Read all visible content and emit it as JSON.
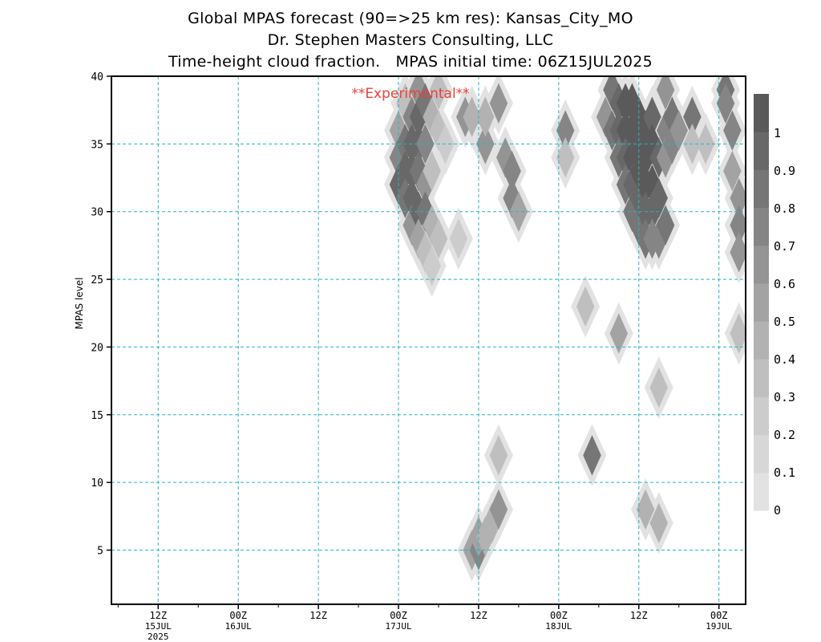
{
  "title_lines": [
    "Global MPAS forecast (90=>25 km res): Kansas_City_MO",
    "Dr. Stephen Masters Consulting, LLC",
    "Time-height cloud fraction.   MPAS initial time: 06Z15JUL2025"
  ],
  "watermark": "**Experimental**",
  "colors": {
    "grid": "#1fb8c8",
    "watermark": "#e8413c",
    "levels": [
      "#e2e2e2",
      "#d7d7d7",
      "#cccccc",
      "#bfbfbf",
      "#b2b2b2",
      "#a3a3a3",
      "#949494",
      "#858585",
      "#767676",
      "#686868",
      "#5a5a5a"
    ]
  },
  "chart_data": {
    "type": "heatmap",
    "variable": "cloud fraction",
    "title": "Time-height cloud fraction.",
    "ylabel": "MPAS level",
    "xlabel": "",
    "ylim": [
      1,
      40
    ],
    "xlim_hours_from_init": [
      -1,
      94
    ],
    "x_ticks": [
      {
        "label": "12Z",
        "sub": "15JUL",
        "sub2": "2025",
        "hours": 6
      },
      {
        "label": "00Z",
        "sub": "16JUL",
        "sub2": "",
        "hours": 18
      },
      {
        "label": "12Z",
        "sub": "",
        "sub2": "",
        "hours": 30
      },
      {
        "label": "00Z",
        "sub": "17JUL",
        "sub2": "",
        "hours": 42
      },
      {
        "label": "12Z",
        "sub": "",
        "sub2": "",
        "hours": 54
      },
      {
        "label": "00Z",
        "sub": "18JUL",
        "sub2": "",
        "hours": 66
      },
      {
        "label": "12Z",
        "sub": "",
        "sub2": "",
        "hours": 78
      },
      {
        "label": "00Z",
        "sub": "19JUL",
        "sub2": "",
        "hours": 90
      }
    ],
    "y_ticks": [
      5,
      10,
      15,
      20,
      25,
      30,
      35,
      40
    ],
    "colorbar_labels": [
      "0",
      "0.1",
      "0.2",
      "0.3",
      "0.4",
      "0.5",
      "0.6",
      "0.7",
      "0.8",
      "0.9",
      "1"
    ],
    "grid": true,
    "cells": [
      {
        "t": 42,
        "l": 36,
        "v": 0.5
      },
      {
        "t": 42,
        "l": 34,
        "v": 0.7
      },
      {
        "t": 42,
        "l": 32,
        "v": 0.9
      },
      {
        "t": 43,
        "l": 38,
        "v": 0.3
      },
      {
        "t": 43,
        "l": 35,
        "v": 0.8
      },
      {
        "t": 43,
        "l": 33,
        "v": 0.9
      },
      {
        "t": 43,
        "l": 31,
        "v": 0.8
      },
      {
        "t": 44,
        "l": 37,
        "v": 0.7
      },
      {
        "t": 44,
        "l": 35,
        "v": 0.9
      },
      {
        "t": 44,
        "l": 33,
        "v": 0.9
      },
      {
        "t": 44,
        "l": 31,
        "v": 0.9
      },
      {
        "t": 44,
        "l": 29,
        "v": 0.6
      },
      {
        "t": 45,
        "l": 39,
        "v": 0.6
      },
      {
        "t": 45,
        "l": 37,
        "v": 0.9
      },
      {
        "t": 45,
        "l": 35,
        "v": 0.9
      },
      {
        "t": 45,
        "l": 33,
        "v": 0.8
      },
      {
        "t": 45,
        "l": 30,
        "v": 0.9
      },
      {
        "t": 45,
        "l": 28,
        "v": 0.5
      },
      {
        "t": 46,
        "l": 38,
        "v": 0.8
      },
      {
        "t": 46,
        "l": 35,
        "v": 0.7
      },
      {
        "t": 46,
        "l": 32,
        "v": 0.6
      },
      {
        "t": 46,
        "l": 30,
        "v": 0.8
      },
      {
        "t": 46,
        "l": 27,
        "v": 0.3
      },
      {
        "t": 47,
        "l": 37,
        "v": 0.4
      },
      {
        "t": 47,
        "l": 33,
        "v": 0.3
      },
      {
        "t": 47,
        "l": 29,
        "v": 0.4
      },
      {
        "t": 47,
        "l": 26,
        "v": 0.2
      },
      {
        "t": 48,
        "l": 39,
        "v": 0.3
      },
      {
        "t": 48,
        "l": 36,
        "v": 0.3
      },
      {
        "t": 48,
        "l": 28,
        "v": 0.3
      },
      {
        "t": 52,
        "l": 37,
        "v": 0.6
      },
      {
        "t": 53,
        "l": 37,
        "v": 0.4
      },
      {
        "t": 55,
        "l": 35,
        "v": 0.6
      },
      {
        "t": 55,
        "l": 37,
        "v": 0.4
      },
      {
        "t": 57,
        "l": 38,
        "v": 0.6
      },
      {
        "t": 58,
        "l": 34,
        "v": 0.6
      },
      {
        "t": 59,
        "l": 33,
        "v": 0.7
      },
      {
        "t": 59,
        "l": 31,
        "v": 0.7
      },
      {
        "t": 60,
        "l": 30,
        "v": 0.5
      },
      {
        "t": 57,
        "l": 12,
        "v": 0.3
      },
      {
        "t": 49,
        "l": 35,
        "v": 0.2
      },
      {
        "t": 51,
        "l": 28,
        "v": 0.2
      },
      {
        "t": 53,
        "l": 5,
        "v": 0.5
      },
      {
        "t": 54,
        "l": 5,
        "v": 0.7
      },
      {
        "t": 54,
        "l": 6,
        "v": 0.5
      },
      {
        "t": 55,
        "l": 6,
        "v": 0.4
      },
      {
        "t": 56,
        "l": 7,
        "v": 0.4
      },
      {
        "t": 57,
        "l": 8,
        "v": 0.6
      },
      {
        "t": 67,
        "l": 36,
        "v": 0.7
      },
      {
        "t": 67,
        "l": 34,
        "v": 0.3
      },
      {
        "t": 70,
        "l": 23,
        "v": 0.3
      },
      {
        "t": 71,
        "l": 12,
        "v": 0.8
      },
      {
        "t": 73,
        "l": 37,
        "v": 0.6
      },
      {
        "t": 74,
        "l": 39,
        "v": 0.8
      },
      {
        "t": 74,
        "l": 36,
        "v": 0.8
      },
      {
        "t": 75,
        "l": 38,
        "v": 0.9
      },
      {
        "t": 75,
        "l": 36,
        "v": 0.9
      },
      {
        "t": 75,
        "l": 34,
        "v": 0.8
      },
      {
        "t": 75,
        "l": 21,
        "v": 0.5
      },
      {
        "t": 76,
        "l": 38,
        "v": 1.0
      },
      {
        "t": 76,
        "l": 36,
        "v": 1.0
      },
      {
        "t": 76,
        "l": 34,
        "v": 0.9
      },
      {
        "t": 76,
        "l": 32,
        "v": 0.8
      },
      {
        "t": 77,
        "l": 38,
        "v": 1.0
      },
      {
        "t": 77,
        "l": 36,
        "v": 1.0
      },
      {
        "t": 77,
        "l": 34,
        "v": 1.0
      },
      {
        "t": 77,
        "l": 32,
        "v": 0.9
      },
      {
        "t": 77,
        "l": 30,
        "v": 0.8
      },
      {
        "t": 78,
        "l": 37,
        "v": 1.0
      },
      {
        "t": 78,
        "l": 35,
        "v": 1.0
      },
      {
        "t": 78,
        "l": 33,
        "v": 1.0
      },
      {
        "t": 78,
        "l": 31,
        "v": 0.9
      },
      {
        "t": 78,
        "l": 29,
        "v": 0.8
      },
      {
        "t": 79,
        "l": 36,
        "v": 1.0
      },
      {
        "t": 79,
        "l": 34,
        "v": 1.0
      },
      {
        "t": 79,
        "l": 32,
        "v": 1.0
      },
      {
        "t": 79,
        "l": 30,
        "v": 0.9
      },
      {
        "t": 79,
        "l": 28,
        "v": 0.8
      },
      {
        "t": 80,
        "l": 37,
        "v": 0.9
      },
      {
        "t": 80,
        "l": 35,
        "v": 1.0
      },
      {
        "t": 80,
        "l": 32,
        "v": 1.0
      },
      {
        "t": 80,
        "l": 30,
        "v": 0.9
      },
      {
        "t": 80,
        "l": 28,
        "v": 0.7
      },
      {
        "t": 81,
        "l": 34,
        "v": 0.9
      },
      {
        "t": 81,
        "l": 31,
        "v": 0.9
      },
      {
        "t": 81,
        "l": 28,
        "v": 0.7
      },
      {
        "t": 79,
        "l": 8,
        "v": 0.4
      },
      {
        "t": 81,
        "l": 7,
        "v": 0.4
      },
      {
        "t": 81,
        "l": 17,
        "v": 0.3
      },
      {
        "t": 82,
        "l": 39,
        "v": 0.6
      },
      {
        "t": 82,
        "l": 36,
        "v": 0.7
      },
      {
        "t": 82,
        "l": 34,
        "v": 0.6
      },
      {
        "t": 82,
        "l": 29,
        "v": 0.8
      },
      {
        "t": 83,
        "l": 37,
        "v": 0.8
      },
      {
        "t": 83,
        "l": 35,
        "v": 0.7
      },
      {
        "t": 84,
        "l": 36,
        "v": 0.6
      },
      {
        "t": 86,
        "l": 37,
        "v": 0.8
      },
      {
        "t": 86,
        "l": 35,
        "v": 0.3
      },
      {
        "t": 88,
        "l": 35,
        "v": 0.3
      },
      {
        "t": 91,
        "l": 39,
        "v": 0.8
      },
      {
        "t": 91,
        "l": 38,
        "v": 0.7
      },
      {
        "t": 92,
        "l": 36,
        "v": 0.7
      },
      {
        "t": 92,
        "l": 33,
        "v": 0.5
      },
      {
        "t": 93,
        "l": 31,
        "v": 0.6
      },
      {
        "t": 93,
        "l": 29,
        "v": 0.7
      },
      {
        "t": 93,
        "l": 27,
        "v": 0.6
      },
      {
        "t": 93,
        "l": 21,
        "v": 0.3
      }
    ]
  }
}
